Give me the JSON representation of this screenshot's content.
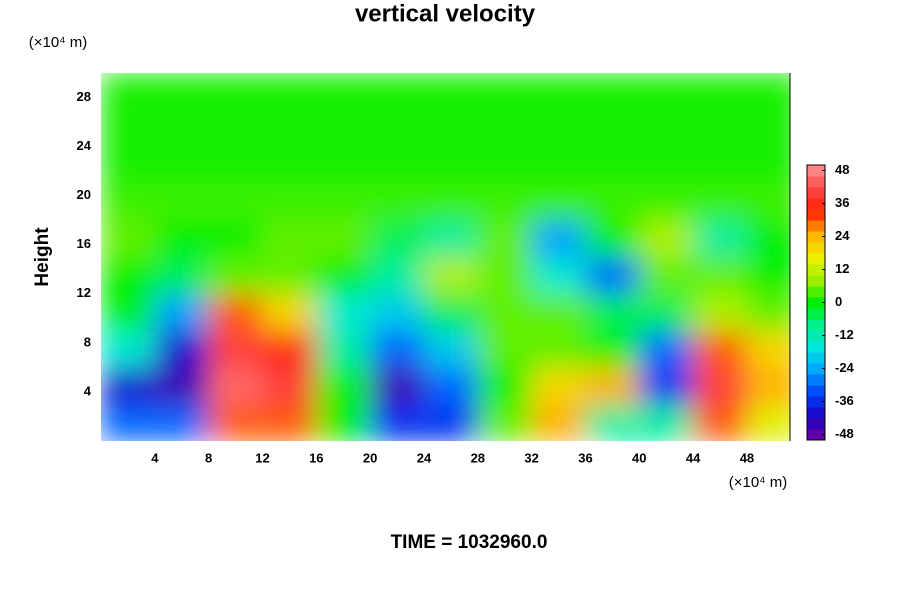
{
  "chart_data": {
    "type": "heatmap",
    "title": "vertical velocity",
    "ylabel": "Height",
    "yunit": "(×10⁴ m)",
    "xunit": "(×10⁴ m)",
    "annotation": "TIME = 1032960.0",
    "x": [
      2,
      6,
      10,
      14,
      18,
      22,
      26,
      30,
      34,
      38,
      42,
      46,
      50
    ],
    "y": [
      1.5,
      4.5,
      7.5,
      10.5,
      13.5,
      16.5,
      19.5,
      22.5,
      25.5,
      28.5
    ],
    "z": [
      [
        -30,
        -30,
        30,
        30,
        0,
        -35,
        -35,
        5,
        25,
        -10,
        -10,
        30,
        15
      ],
      [
        -40,
        -45,
        45,
        40,
        0,
        -45,
        -30,
        0,
        20,
        25,
        -35,
        40,
        25
      ],
      [
        -15,
        -40,
        40,
        35,
        -10,
        -30,
        -20,
        5,
        5,
        0,
        -30,
        30,
        20
      ],
      [
        0,
        -25,
        30,
        20,
        -15,
        -20,
        -5,
        5,
        5,
        -5,
        -5,
        10,
        5
      ],
      [
        0,
        -5,
        5,
        5,
        0,
        -10,
        10,
        5,
        -15,
        -30,
        5,
        5,
        0
      ],
      [
        5,
        0,
        0,
        5,
        5,
        -5,
        -10,
        5,
        -25,
        0,
        10,
        -10,
        0
      ],
      [
        3,
        3,
        3,
        3,
        3,
        3,
        3,
        3,
        3,
        3,
        3,
        3,
        3
      ],
      [
        1,
        1,
        1,
        1,
        1,
        1,
        1,
        1,
        1,
        1,
        1,
        1,
        1
      ],
      [
        1,
        1,
        1,
        1,
        1,
        1,
        1,
        1,
        1,
        1,
        1,
        1,
        1
      ],
      [
        1,
        1,
        1,
        1,
        1,
        1,
        1,
        1,
        1,
        1,
        1,
        1,
        1
      ]
    ],
    "xlim": [
      0,
      51.2
    ],
    "ylim": [
      0,
      30
    ],
    "xticks": [
      4,
      8,
      12,
      16,
      20,
      24,
      28,
      32,
      36,
      40,
      44,
      48
    ],
    "yticks": [
      4,
      8,
      12,
      16,
      20,
      24,
      28
    ],
    "clim": [
      -50,
      50
    ],
    "cticks": [
      -48,
      -36,
      -24,
      -12,
      0,
      12,
      24,
      36,
      48
    ],
    "colorscale": [
      "#7000a0",
      "#2000c0",
      "#0040ff",
      "#00a0ff",
      "#00e8e0",
      "#00f090",
      "#00f000",
      "#a0f000",
      "#f0f000",
      "#ffb000",
      "#ff2000",
      "#ff4848",
      "#ff9898"
    ]
  }
}
